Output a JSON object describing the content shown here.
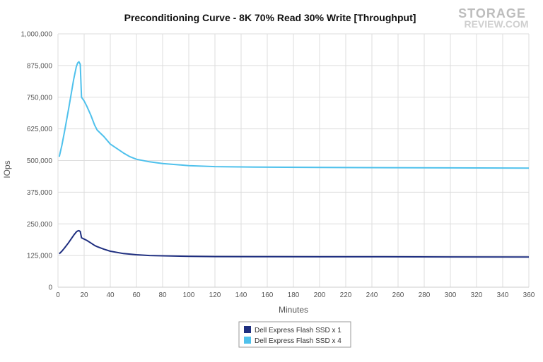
{
  "logo": {
    "line1": "STORAGE",
    "line2": "REVIEW.COM"
  },
  "chart_data": {
    "type": "line",
    "title": "Preconditioning Curve - 8K 70% Read 30% Write [Throughput]",
    "xlabel": "Minutes",
    "ylabel": "IOps",
    "xlim": [
      0,
      360
    ],
    "ylim": [
      0,
      1000000
    ],
    "x_ticks": [
      0,
      20,
      40,
      60,
      80,
      100,
      120,
      140,
      160,
      180,
      200,
      220,
      240,
      260,
      280,
      300,
      320,
      340,
      360
    ],
    "y_ticks": [
      0,
      125000,
      250000,
      375000,
      500000,
      625000,
      750000,
      875000,
      1000000
    ],
    "y_tick_labels": [
      "0",
      "125,000",
      "250,000",
      "375,000",
      "500,000",
      "625,000",
      "750,000",
      "875,000",
      "1,000,000"
    ],
    "grid": true,
    "legend_position": "bottom-center",
    "series": [
      {
        "name": "Dell Express Flash SSD x 1",
        "color": "#1f2f80",
        "x": [
          1,
          3,
          5,
          8,
          10,
          12,
          14,
          15,
          16,
          17,
          18,
          20,
          22,
          25,
          28,
          30,
          35,
          40,
          50,
          60,
          70,
          80,
          100,
          120,
          150,
          200,
          250,
          300,
          360
        ],
        "y": [
          132000,
          142000,
          155000,
          175000,
          190000,
          205000,
          218000,
          222000,
          223000,
          220000,
          195000,
          190000,
          185000,
          175000,
          165000,
          160000,
          150000,
          142000,
          133000,
          128000,
          125000,
          124000,
          122000,
          121000,
          120500,
          120000,
          120000,
          119500,
          119000
        ]
      },
      {
        "name": "Dell Express Flash SSD x 4",
        "color": "#4fc1ec",
        "x": [
          1,
          3,
          5,
          8,
          10,
          12,
          14,
          15,
          16,
          17,
          18,
          20,
          22,
          25,
          28,
          30,
          35,
          40,
          50,
          55,
          60,
          70,
          80,
          100,
          120,
          150,
          200,
          250,
          300,
          360
        ],
        "y": [
          515000,
          560000,
          615000,
          700000,
          760000,
          820000,
          870000,
          885000,
          890000,
          880000,
          750000,
          735000,
          715000,
          680000,
          640000,
          620000,
          595000,
          565000,
          530000,
          515000,
          505000,
          495000,
          488000,
          480000,
          476000,
          474000,
          473000,
          472000,
          471000,
          470000
        ]
      }
    ]
  }
}
